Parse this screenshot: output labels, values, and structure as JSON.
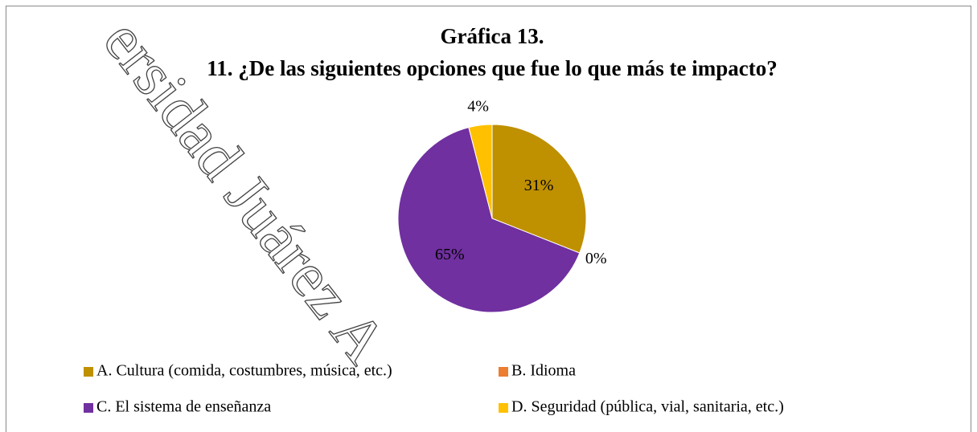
{
  "chart_data": {
    "type": "pie",
    "title": "Gráfica 13.",
    "subtitle": "11. ¿De las siguientes opciones que fue lo que más te impacto?",
    "categories": [
      "A. Cultura (comida, costumbres, música, etc.)",
      "B. Idioma",
      "C. El sistema de enseñanza",
      "D. Seguridad (pública, vial, sanitaria, etc.)"
    ],
    "values": [
      31,
      0,
      65,
      4
    ],
    "value_labels": [
      "31%",
      "0%",
      "65%",
      "4%"
    ],
    "colors": [
      "#bf9000",
      "#ed7d31",
      "#7030a0",
      "#ffc000"
    ],
    "legend": "bottom",
    "watermark": "ersidad Juárez A"
  }
}
